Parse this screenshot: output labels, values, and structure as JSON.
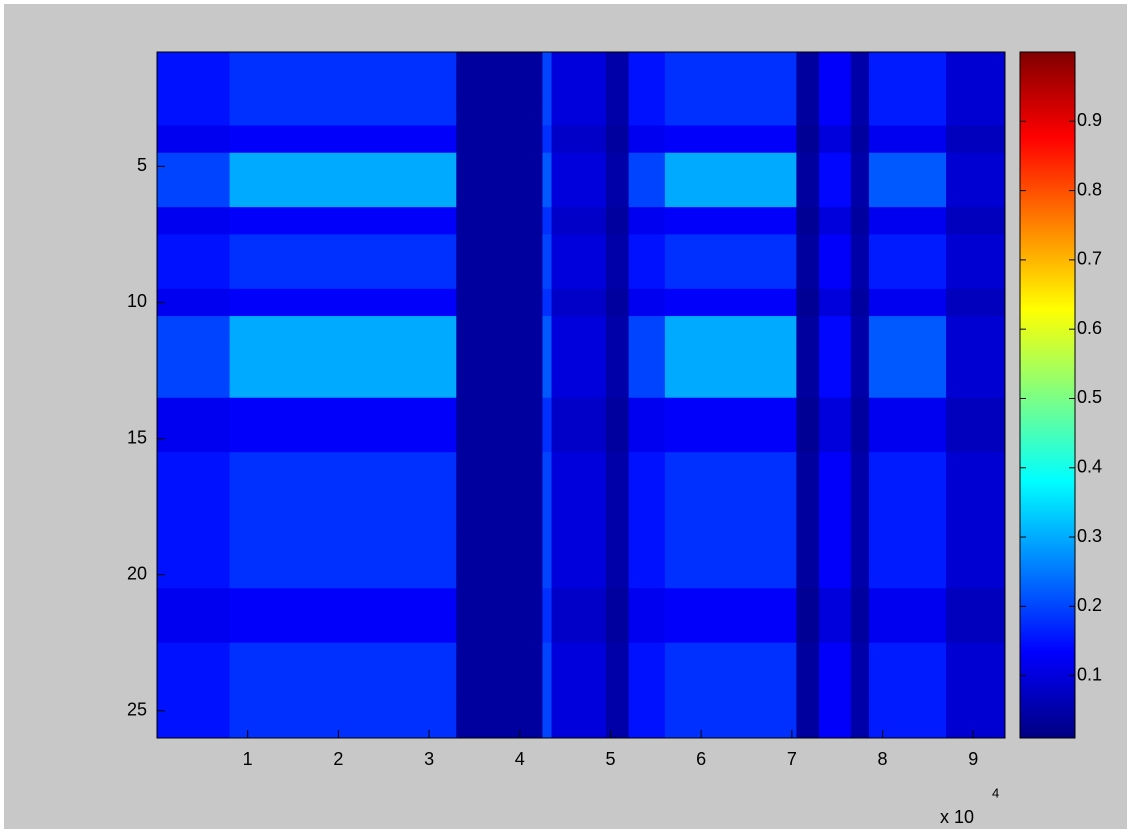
{
  "chart_data": {
    "type": "heatmap",
    "xbins": [
      0,
      8000,
      33000,
      42500,
      43500,
      49500,
      52000,
      56000,
      70500,
      73000,
      76500,
      78500,
      87000,
      93500
    ],
    "y": [
      1,
      2,
      3,
      4,
      5,
      6,
      7,
      8,
      9,
      10,
      11,
      12,
      13,
      14,
      15,
      16,
      17,
      18,
      19,
      20,
      21,
      22,
      23,
      24,
      25,
      26
    ],
    "z": [
      [
        0.15,
        0.18,
        0.04,
        0.2,
        0.1,
        0.05,
        0.15,
        0.18,
        0.04,
        0.13,
        0.05,
        0.16,
        0.09
      ],
      [
        0.15,
        0.18,
        0.04,
        0.2,
        0.1,
        0.05,
        0.15,
        0.18,
        0.04,
        0.13,
        0.05,
        0.16,
        0.09
      ],
      [
        0.15,
        0.18,
        0.04,
        0.2,
        0.1,
        0.05,
        0.15,
        0.18,
        0.04,
        0.13,
        0.05,
        0.16,
        0.09
      ],
      [
        0.12,
        0.13,
        0.04,
        0.18,
        0.08,
        0.04,
        0.12,
        0.13,
        0.03,
        0.1,
        0.04,
        0.12,
        0.07
      ],
      [
        0.2,
        0.3,
        0.04,
        0.22,
        0.1,
        0.05,
        0.2,
        0.3,
        0.04,
        0.14,
        0.05,
        0.22,
        0.09
      ],
      [
        0.2,
        0.3,
        0.04,
        0.22,
        0.1,
        0.05,
        0.2,
        0.3,
        0.04,
        0.14,
        0.05,
        0.22,
        0.09
      ],
      [
        0.12,
        0.13,
        0.04,
        0.18,
        0.08,
        0.04,
        0.12,
        0.13,
        0.03,
        0.1,
        0.04,
        0.12,
        0.07
      ],
      [
        0.15,
        0.18,
        0.04,
        0.2,
        0.1,
        0.05,
        0.15,
        0.18,
        0.04,
        0.13,
        0.05,
        0.16,
        0.09
      ],
      [
        0.15,
        0.18,
        0.04,
        0.2,
        0.1,
        0.05,
        0.15,
        0.18,
        0.04,
        0.13,
        0.05,
        0.16,
        0.09
      ],
      [
        0.12,
        0.13,
        0.04,
        0.18,
        0.08,
        0.04,
        0.12,
        0.13,
        0.03,
        0.1,
        0.04,
        0.12,
        0.07
      ],
      [
        0.2,
        0.3,
        0.04,
        0.22,
        0.1,
        0.05,
        0.2,
        0.3,
        0.04,
        0.14,
        0.05,
        0.22,
        0.09
      ],
      [
        0.2,
        0.3,
        0.04,
        0.22,
        0.1,
        0.05,
        0.2,
        0.3,
        0.04,
        0.14,
        0.05,
        0.22,
        0.09
      ],
      [
        0.2,
        0.3,
        0.04,
        0.22,
        0.1,
        0.05,
        0.2,
        0.3,
        0.04,
        0.14,
        0.05,
        0.22,
        0.09
      ],
      [
        0.12,
        0.13,
        0.04,
        0.18,
        0.08,
        0.04,
        0.12,
        0.13,
        0.03,
        0.1,
        0.04,
        0.12,
        0.07
      ],
      [
        0.12,
        0.13,
        0.04,
        0.18,
        0.08,
        0.04,
        0.12,
        0.13,
        0.03,
        0.1,
        0.04,
        0.12,
        0.07
      ],
      [
        0.15,
        0.18,
        0.04,
        0.2,
        0.1,
        0.05,
        0.15,
        0.18,
        0.04,
        0.13,
        0.05,
        0.16,
        0.09
      ],
      [
        0.15,
        0.18,
        0.04,
        0.2,
        0.1,
        0.05,
        0.15,
        0.18,
        0.04,
        0.13,
        0.05,
        0.16,
        0.09
      ],
      [
        0.15,
        0.18,
        0.04,
        0.2,
        0.1,
        0.05,
        0.15,
        0.18,
        0.04,
        0.13,
        0.05,
        0.16,
        0.09
      ],
      [
        0.15,
        0.18,
        0.04,
        0.2,
        0.1,
        0.05,
        0.15,
        0.18,
        0.04,
        0.13,
        0.05,
        0.16,
        0.09
      ],
      [
        0.15,
        0.18,
        0.04,
        0.2,
        0.1,
        0.05,
        0.15,
        0.18,
        0.04,
        0.13,
        0.05,
        0.16,
        0.09
      ],
      [
        0.12,
        0.13,
        0.04,
        0.18,
        0.08,
        0.04,
        0.12,
        0.13,
        0.03,
        0.1,
        0.04,
        0.12,
        0.07
      ],
      [
        0.12,
        0.13,
        0.04,
        0.18,
        0.08,
        0.04,
        0.12,
        0.13,
        0.03,
        0.1,
        0.04,
        0.12,
        0.07
      ],
      [
        0.15,
        0.18,
        0.04,
        0.2,
        0.1,
        0.05,
        0.15,
        0.18,
        0.04,
        0.13,
        0.05,
        0.16,
        0.09
      ],
      [
        0.15,
        0.18,
        0.04,
        0.2,
        0.1,
        0.05,
        0.15,
        0.18,
        0.04,
        0.13,
        0.05,
        0.16,
        0.09
      ],
      [
        0.15,
        0.18,
        0.04,
        0.2,
        0.1,
        0.05,
        0.15,
        0.18,
        0.04,
        0.13,
        0.05,
        0.16,
        0.09
      ],
      [
        0.15,
        0.18,
        0.04,
        0.2,
        0.1,
        0.05,
        0.15,
        0.18,
        0.04,
        0.13,
        0.05,
        0.16,
        0.09
      ]
    ],
    "xlim": [
      0,
      93500
    ],
    "xticks": [
      {
        "value": 10000,
        "label": "1"
      },
      {
        "value": 20000,
        "label": "2"
      },
      {
        "value": 30000,
        "label": "3"
      },
      {
        "value": 40000,
        "label": "4"
      },
      {
        "value": 50000,
        "label": "5"
      },
      {
        "value": 60000,
        "label": "6"
      },
      {
        "value": 70000,
        "label": "7"
      },
      {
        "value": 80000,
        "label": "8"
      },
      {
        "value": 90000,
        "label": "9"
      }
    ],
    "x_multiplier": "x 10",
    "x_exponent": "4",
    "ylim": [
      0.8,
      26
    ],
    "yticks": [
      5,
      10,
      15,
      20,
      25
    ],
    "colormap": "jet",
    "clim": [
      0.01,
      1
    ],
    "cticks": [
      0.1,
      0.2,
      0.3,
      0.4,
      0.5,
      0.6,
      0.7,
      0.8,
      0.9
    ]
  }
}
